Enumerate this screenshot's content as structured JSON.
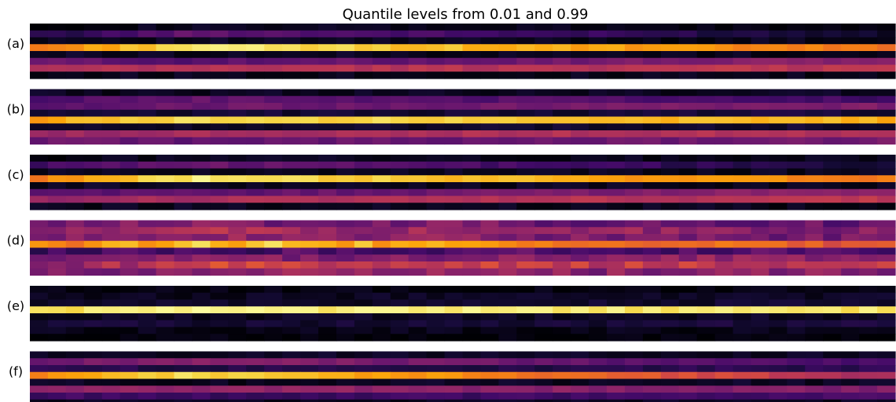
{
  "chart_data": {
    "type": "heatmap",
    "title": "Quantile levels from 0.01 and 0.99",
    "colormap": "inferno",
    "columns": 48,
    "rows_per_panel": 8,
    "panels": [
      {
        "label": "(a)",
        "profiles": [
          {
            "start": 0.03,
            "peak": 0.05,
            "end": 0.02
          },
          {
            "start": 0.12,
            "peak": 0.28,
            "end": 0.08
          },
          {
            "start": 0.06,
            "peak": 0.05,
            "end": 0.04
          },
          {
            "start": 0.7,
            "peak": 0.95,
            "end": 0.68
          },
          {
            "start": 0.06,
            "peak": 0.05,
            "end": 0.04
          },
          {
            "start": 0.3,
            "peak": 0.25,
            "end": 0.38
          },
          {
            "start": 0.45,
            "peak": 0.48,
            "end": 0.5
          },
          {
            "start": 0.04,
            "peak": 0.05,
            "end": 0.03
          }
        ]
      },
      {
        "label": "(b)",
        "profiles": [
          {
            "start": 0.05,
            "peak": 0.05,
            "end": 0.05
          },
          {
            "start": 0.22,
            "peak": 0.28,
            "end": 0.2
          },
          {
            "start": 0.25,
            "peak": 0.3,
            "end": 0.35
          },
          {
            "start": 0.1,
            "peak": 0.08,
            "end": 0.1
          },
          {
            "start": 0.8,
            "peak": 0.92,
            "end": 0.82
          },
          {
            "start": 0.08,
            "peak": 0.07,
            "end": 0.08
          },
          {
            "start": 0.4,
            "peak": 0.45,
            "end": 0.48
          },
          {
            "start": 0.3,
            "peak": 0.28,
            "end": 0.32
          }
        ]
      },
      {
        "label": "(c)",
        "profiles": [
          {
            "start": 0.03,
            "peak": 0.05,
            "end": 0.04
          },
          {
            "start": 0.2,
            "peak": 0.3,
            "end": 0.1
          },
          {
            "start": 0.06,
            "peak": 0.05,
            "end": 0.05
          },
          {
            "start": 0.72,
            "peak": 0.95,
            "end": 0.7
          },
          {
            "start": 0.06,
            "peak": 0.05,
            "end": 0.05
          },
          {
            "start": 0.28,
            "peak": 0.26,
            "end": 0.4
          },
          {
            "start": 0.4,
            "peak": 0.45,
            "end": 0.5
          },
          {
            "start": 0.04,
            "peak": 0.05,
            "end": 0.04
          }
        ]
      },
      {
        "label": "(d)",
        "profiles": [
          {
            "start": 0.3,
            "peak": 0.35,
            "end": 0.28
          },
          {
            "start": 0.4,
            "peak": 0.45,
            "end": 0.35
          },
          {
            "start": 0.35,
            "peak": 0.4,
            "end": 0.3
          },
          {
            "start": 0.7,
            "peak": 0.88,
            "end": 0.62
          },
          {
            "start": 0.2,
            "peak": 0.22,
            "end": 0.25
          },
          {
            "start": 0.28,
            "peak": 0.35,
            "end": 0.4
          },
          {
            "start": 0.35,
            "peak": 0.55,
            "end": 0.5
          },
          {
            "start": 0.3,
            "peak": 0.4,
            "end": 0.35
          }
        ]
      },
      {
        "label": "(e)",
        "profiles": [
          {
            "start": 0.02,
            "peak": 0.02,
            "end": 0.02
          },
          {
            "start": 0.04,
            "peak": 0.05,
            "end": 0.06
          },
          {
            "start": 0.05,
            "peak": 0.06,
            "end": 0.08
          },
          {
            "start": 0.92,
            "peak": 0.96,
            "end": 0.93
          },
          {
            "start": 0.06,
            "peak": 0.05,
            "end": 0.06
          },
          {
            "start": 0.1,
            "peak": 0.08,
            "end": 0.1
          },
          {
            "start": 0.04,
            "peak": 0.04,
            "end": 0.04
          },
          {
            "start": 0.01,
            "peak": 0.01,
            "end": 0.01
          }
        ]
      },
      {
        "label": "(f)",
        "profiles": [
          {
            "start": 0.05,
            "peak": 0.06,
            "end": 0.06
          },
          {
            "start": 0.3,
            "peak": 0.38,
            "end": 0.2
          },
          {
            "start": 0.15,
            "peak": 0.12,
            "end": 0.15
          },
          {
            "start": 0.72,
            "peak": 0.92,
            "end": 0.45
          },
          {
            "start": 0.06,
            "peak": 0.05,
            "end": 0.06
          },
          {
            "start": 0.38,
            "peak": 0.4,
            "end": 0.35
          },
          {
            "start": 0.2,
            "peak": 0.18,
            "end": 0.22
          },
          {
            "start": 0.05,
            "peak": 0.05,
            "end": 0.05
          }
        ]
      }
    ]
  }
}
